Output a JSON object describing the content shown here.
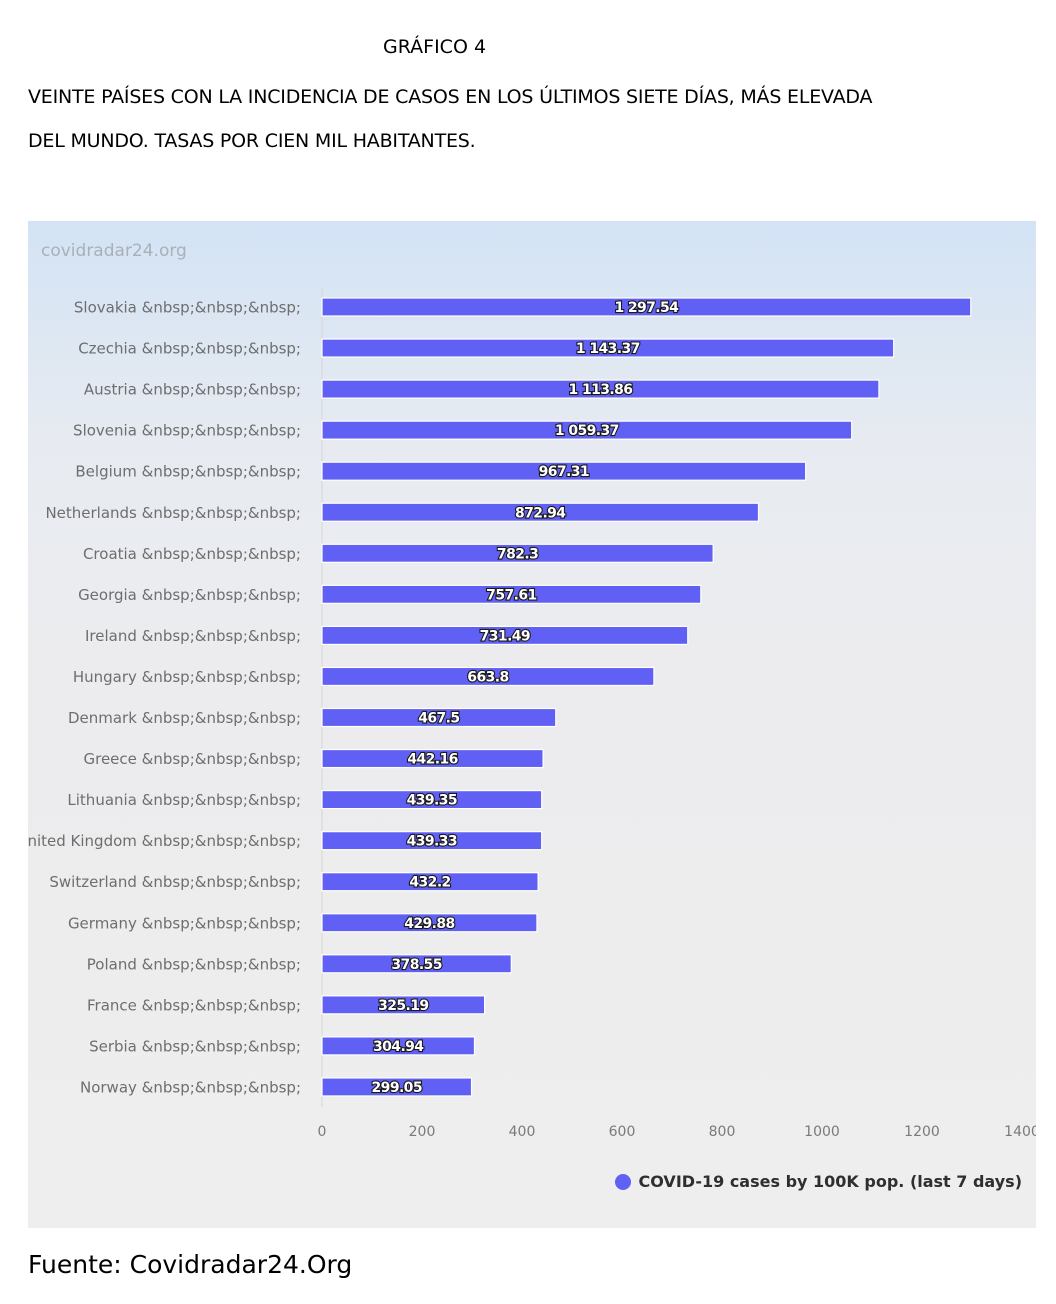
{
  "document": {
    "figure_label": "GRÁFICO 4",
    "heading_line1": "VEINTE PAÍSES CON LA INCIDENCIA DE CASOS EN LOS ÚLTIMOS SIETE DÍAS, MÁS ELEVADA",
    "heading_line2": "DEL MUNDO. TASAS POR CIEN MIL HABITANTES.",
    "source": "Fuente: Covidradar24.Org"
  },
  "watermark": "covidradar24.org",
  "colors": {
    "bar": "#6060f4",
    "label_text": "#ffffff",
    "axis_text": "#7a7a7a"
  },
  "chart_data": {
    "type": "bar",
    "orientation": "horizontal",
    "categories": [
      "Slovakia &nbsp;&nbsp;&nbsp;",
      "Czechia &nbsp;&nbsp;&nbsp;",
      "Austria &nbsp;&nbsp;&nbsp;",
      "Slovenia &nbsp;&nbsp;&nbsp;",
      "Belgium &nbsp;&nbsp;&nbsp;",
      "Netherlands &nbsp;&nbsp;&nbsp;",
      "Croatia &nbsp;&nbsp;&nbsp;",
      "Georgia &nbsp;&nbsp;&nbsp;",
      "Ireland &nbsp;&nbsp;&nbsp;",
      "Hungary &nbsp;&nbsp;&nbsp;",
      "Denmark &nbsp;&nbsp;&nbsp;",
      "Greece &nbsp;&nbsp;&nbsp;",
      "Lithuania &nbsp;&nbsp;&nbsp;",
      "United Kingdom &nbsp;&nbsp;&nbsp;",
      "Switzerland &nbsp;&nbsp;&nbsp;",
      "Germany &nbsp;&nbsp;&nbsp;",
      "Poland &nbsp;&nbsp;&nbsp;",
      "France &nbsp;&nbsp;&nbsp;",
      "Serbia &nbsp;&nbsp;&nbsp;",
      "Norway &nbsp;&nbsp;&nbsp;"
    ],
    "series": [
      {
        "name": "COVID-19 cases by 100K pop. (last 7 days)",
        "values": [
          1297.54,
          1143.37,
          1113.86,
          1059.37,
          967.31,
          872.94,
          782.3,
          757.61,
          731.49,
          663.8,
          467.5,
          442.16,
          439.35,
          439.33,
          432.2,
          429.88,
          378.55,
          325.19,
          304.94,
          299.05
        ]
      }
    ],
    "value_labels": [
      "1 297.54",
      "1 143.37",
      "1 113.86",
      "1 059.37",
      "967.31",
      "872.94",
      "782.3",
      "757.61",
      "731.49",
      "663.8",
      "467.5",
      "442.16",
      "439.35",
      "439.33",
      "432.2",
      "429.88",
      "378.55",
      "325.19",
      "304.94",
      "299.05"
    ],
    "xlim": [
      0,
      1400
    ],
    "x_ticks": [
      0,
      200,
      400,
      600,
      800,
      1000,
      1200,
      1400
    ],
    "grid": false,
    "legend_position": "bottom-right"
  }
}
